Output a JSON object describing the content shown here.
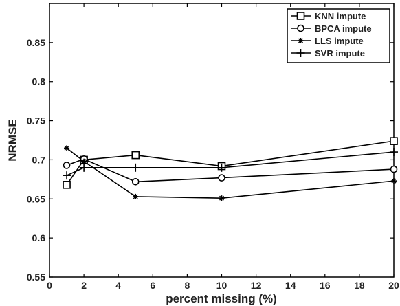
{
  "chart_data": {
    "type": "line",
    "title": "",
    "xlabel": "percent missing (%)",
    "ylabel": "NRMSE",
    "xlim": [
      0,
      20
    ],
    "ylim": [
      0.55,
      0.9
    ],
    "xticks": [
      0,
      2,
      4,
      6,
      8,
      10,
      12,
      14,
      16,
      18,
      20
    ],
    "yticks": [
      0.55,
      0.6,
      0.65,
      0.7,
      0.75,
      0.8,
      0.85
    ],
    "ytick_labels": [
      "0.55",
      "0.6",
      "0.65",
      "0.7",
      "0.75",
      "0.8",
      "0.85"
    ],
    "grid": false,
    "legend_position": "top-right",
    "x": [
      1,
      2,
      5,
      10,
      20
    ],
    "series": [
      {
        "name": "KNN impute",
        "marker": "square",
        "values": [
          0.668,
          0.7,
          0.706,
          0.692,
          0.724
        ]
      },
      {
        "name": "BPCA impute",
        "marker": "circle",
        "values": [
          0.693,
          0.701,
          0.672,
          0.677,
          0.688
        ]
      },
      {
        "name": "LLS impute",
        "marker": "star",
        "values": [
          0.715,
          0.698,
          0.653,
          0.651,
          0.673
        ]
      },
      {
        "name": "SVR impute",
        "marker": "plus",
        "values": [
          0.68,
          0.69,
          0.69,
          0.69,
          0.71
        ]
      }
    ],
    "line_color": "#000000"
  }
}
